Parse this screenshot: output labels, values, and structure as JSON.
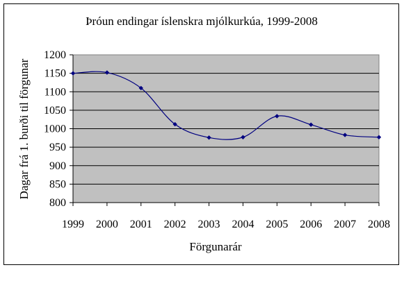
{
  "chart_data": {
    "type": "line",
    "title": "Þróun endingar íslenskra mjólkurkúa, 1999-2008",
    "xlabel": "Förgunarár",
    "ylabel": "Dagar frá 1. burði til förgunar",
    "x": [
      "1999",
      "2000",
      "2001",
      "2002",
      "2003",
      "2004",
      "2005",
      "2006",
      "2007",
      "2008"
    ],
    "series": [
      {
        "values": [
          1150,
          1152,
          1110,
          1012,
          976,
          977,
          1034,
          1011,
          983,
          977
        ]
      }
    ],
    "ylim": [
      800,
      1200
    ],
    "yticks": [
      "800",
      "850",
      "900",
      "950",
      "1000",
      "1050",
      "1100",
      "1150",
      "1200"
    ],
    "grid": true,
    "smooth": true,
    "colors": {
      "plot_background": "#c0c0c0",
      "line": "#000080",
      "gridline": "#000000"
    }
  }
}
